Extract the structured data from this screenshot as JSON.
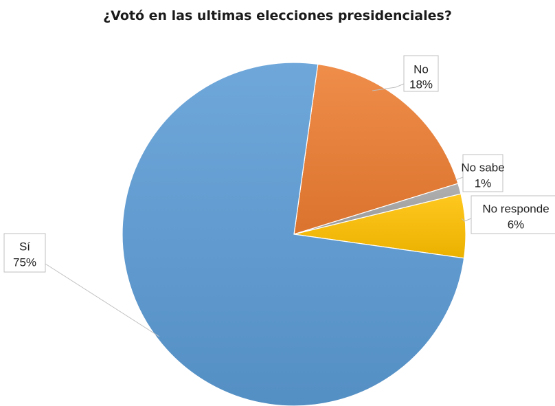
{
  "chart_data": {
    "type": "pie",
    "title": "¿Votó en las ultimas elecciones presidenciales?",
    "slices": [
      {
        "label": "No",
        "value": 18,
        "value_label": "18%",
        "color": "#ED7D31"
      },
      {
        "label": "No sabe",
        "value": 1,
        "value_label": "1%",
        "color": "#A5A5A5"
      },
      {
        "label": "No responde",
        "value": 6,
        "value_label": "6%",
        "color": "#FFC000"
      },
      {
        "label": "Sí",
        "value": 75,
        "value_label": "75%",
        "color": "#5B9BD5"
      }
    ],
    "start_angle_deg": 8,
    "direction": "clockwise",
    "legend": "none"
  }
}
